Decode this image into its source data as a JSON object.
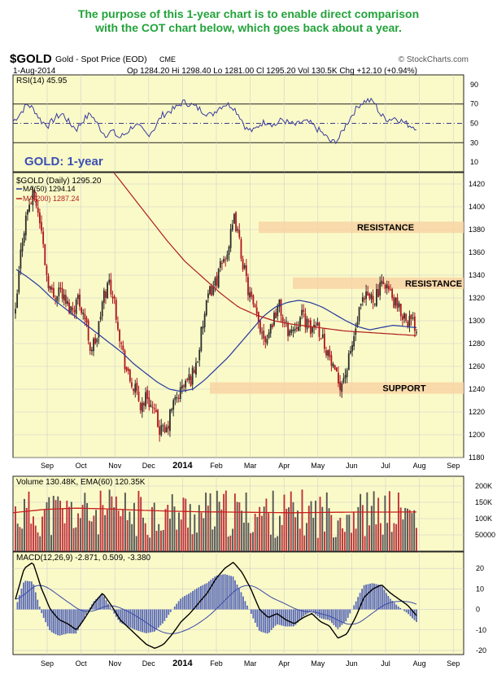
{
  "note": {
    "line1": "The purpose of this 1-year chart is to enable direct comparison",
    "line2": "with the COT chart below, which goes back about a year."
  },
  "header": {
    "symbol": "$GOLD",
    "description": "Gold - Spot Price (EOD)",
    "exchange": "CME",
    "source": "© StockCharts.com",
    "date": "1-Aug-2014",
    "quote": "Op 1284.20  Hi 1298.40  Lo 1281.00  Cl 1295.20  Vol 130.5K  Chg +12.10 (+0.94%)"
  },
  "colors": {
    "panel_bg": "#fafac8",
    "up": "#2b2b2b",
    "down": "#b0141e",
    "ma50": "#2438a0",
    "ma200": "#b01e1e",
    "band": "#f8d4a4",
    "title": "#3b4fb5",
    "note": "#22a33a"
  },
  "chart_data": [
    {
      "type": "line",
      "name_label": "RSI(14) 45.95",
      "ylim": [
        0,
        100
      ],
      "yticks": [
        10,
        30,
        50,
        70,
        90
      ],
      "reference_lines": [
        30,
        50,
        70
      ],
      "values": [
        52,
        60,
        70,
        64,
        52,
        48,
        56,
        60,
        50,
        44,
        54,
        60,
        48,
        38,
        42,
        35,
        40,
        48,
        45,
        38,
        45,
        58,
        62,
        66,
        72,
        70,
        66,
        62,
        58,
        66,
        70,
        68,
        58,
        44,
        42,
        50,
        52,
        48,
        54,
        50,
        48,
        52,
        50,
        44,
        38,
        30,
        34,
        48,
        60,
        70,
        74,
        72,
        58,
        54,
        56,
        52,
        48,
        46
      ]
    },
    {
      "type": "candlestick",
      "title": "GOLD: 1-year",
      "series_label": "$GOLD (Daily) 1295.20",
      "legend": [
        "MA(50) 1294.14",
        "MA(200) 1287.24"
      ],
      "ylim": [
        1180,
        1430
      ],
      "yticks": [
        1180,
        1200,
        1220,
        1240,
        1260,
        1280,
        1300,
        1320,
        1340,
        1360,
        1380,
        1400,
        1420
      ],
      "months": [
        "Sep",
        "Oct",
        "Nov",
        "Dec",
        "2014",
        "Feb",
        "Mar",
        "Apr",
        "May",
        "Jun",
        "Jul",
        "Aug",
        "Sep"
      ],
      "closes": [
        1305,
        1370,
        1400,
        1410,
        1385,
        1340,
        1320,
        1330,
        1315,
        1310,
        1320,
        1305,
        1275,
        1285,
        1320,
        1335,
        1310,
        1275,
        1250,
        1240,
        1225,
        1235,
        1220,
        1205,
        1200,
        1225,
        1235,
        1245,
        1250,
        1265,
        1300,
        1325,
        1335,
        1350,
        1365,
        1390,
        1360,
        1330,
        1310,
        1295,
        1285,
        1300,
        1315,
        1295,
        1290,
        1300,
        1305,
        1290,
        1300,
        1285,
        1270,
        1250,
        1245,
        1260,
        1285,
        1310,
        1320,
        1320,
        1325,
        1335,
        1320,
        1310,
        1305,
        1300,
        1295
      ],
      "ma50": [
        1345,
        1338,
        1330,
        1320,
        1312,
        1304,
        1296,
        1288,
        1280,
        1272,
        1262,
        1254,
        1246,
        1240,
        1238,
        1240,
        1248,
        1258,
        1268,
        1280,
        1292,
        1304,
        1312,
        1316,
        1318,
        1316,
        1312,
        1306,
        1300,
        1295,
        1292,
        1294,
        1296,
        1295,
        1294
      ],
      "ma200": [
        1430,
        1410,
        1390,
        1370,
        1352,
        1338,
        1324,
        1312,
        1305,
        1300,
        1297,
        1295,
        1293,
        1291,
        1290,
        1289,
        1288,
        1287
      ],
      "annotations": [
        {
          "label": "RESISTANCE",
          "y": [
            1377,
            1387
          ]
        },
        {
          "label": "RESISTANCE",
          "y": [
            1328,
            1338
          ]
        },
        {
          "label": "SUPPORT",
          "y": [
            1236,
            1246
          ]
        }
      ]
    },
    {
      "type": "bar",
      "name_label": "Volume 130.48K, EMA(60) 120.35K",
      "ylim": [
        0,
        230000
      ],
      "yticks": [
        50000,
        100000,
        150000,
        200000
      ],
      "ytick_labels": [
        "50000",
        "100K",
        "150K",
        "200K"
      ],
      "ema": [
        118000,
        128000,
        132000,
        130000,
        126000,
        123000,
        121000,
        120000,
        119000,
        118000,
        119000,
        120000,
        120000,
        120350
      ]
    },
    {
      "type": "line",
      "name_label": "MACD(12,26,9) -2.871, 0.509, -3.380",
      "ylim": [
        -22,
        28
      ],
      "yticks": [
        -20,
        -10,
        0,
        10,
        20
      ],
      "macd": [
        5,
        20,
        23,
        10,
        0,
        -5,
        -7,
        -10,
        -4,
        3,
        8,
        2,
        -5,
        -9,
        -13,
        -17,
        -19,
        -17,
        -12,
        -6,
        -2,
        3,
        8,
        15,
        20,
        23,
        18,
        10,
        0,
        -4,
        -2,
        -5,
        -7,
        -4,
        -2,
        -6,
        -8,
        -14,
        -12,
        -4,
        6,
        10,
        12,
        8,
        5,
        2,
        -3
      ]
    }
  ]
}
